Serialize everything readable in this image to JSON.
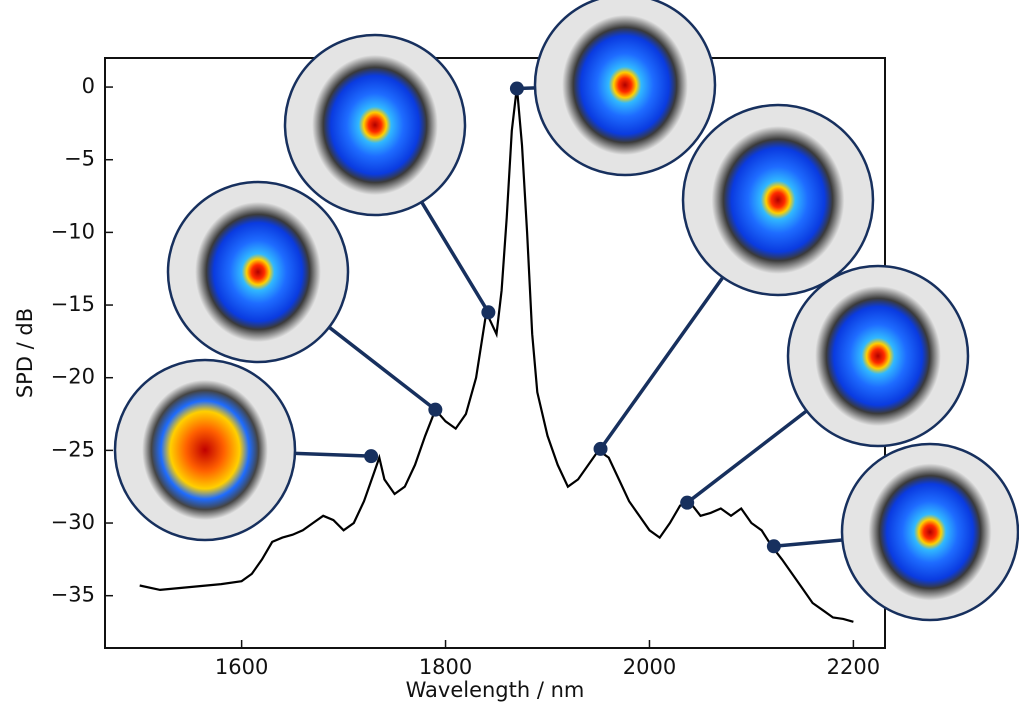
{
  "chart_data": {
    "type": "line",
    "x_label": "Wavelength / nm",
    "y_label": "SPD / dB",
    "x": [
      1500,
      1520,
      1550,
      1580,
      1600,
      1610,
      1620,
      1630,
      1640,
      1650,
      1660,
      1670,
      1680,
      1690,
      1700,
      1710,
      1720,
      1730,
      1735,
      1740,
      1750,
      1760,
      1770,
      1780,
      1790,
      1800,
      1810,
      1820,
      1830,
      1840,
      1850,
      1855,
      1860,
      1865,
      1870,
      1875,
      1880,
      1885,
      1890,
      1900,
      1910,
      1920,
      1930,
      1940,
      1950,
      1960,
      1970,
      1980,
      1990,
      2000,
      2010,
      2020,
      2030,
      2040,
      2050,
      2060,
      2070,
      2080,
      2090,
      2100,
      2110,
      2120,
      2130,
      2140,
      2150,
      2160,
      2170,
      2180,
      2190,
      2200
    ],
    "values": [
      -34.3,
      -34.6,
      -34.4,
      -34.2,
      -34.0,
      -33.5,
      -32.5,
      -31.3,
      -31.0,
      -30.8,
      -30.5,
      -30.0,
      -29.5,
      -29.8,
      -30.5,
      -30.0,
      -28.5,
      -26.5,
      -25.5,
      -27.0,
      -28.0,
      -27.5,
      -26.0,
      -24.0,
      -22.2,
      -23.0,
      -23.5,
      -22.5,
      -20.0,
      -15.5,
      -17.0,
      -14.0,
      -9.0,
      -3.0,
      0.0,
      -4.0,
      -10.0,
      -17.0,
      -21.0,
      -24.0,
      -26.0,
      -27.5,
      -27.0,
      -26.0,
      -25.0,
      -25.5,
      -27.0,
      -28.5,
      -29.5,
      -30.5,
      -31.0,
      -30.0,
      -28.8,
      -28.6,
      -29.5,
      -29.3,
      -29.0,
      -29.5,
      -29.0,
      -30.0,
      -30.5,
      -31.6,
      -32.5,
      -33.5,
      -34.5,
      -35.5,
      -36.0,
      -36.5,
      -36.6,
      -36.8
    ],
    "color": "#000000",
    "highlights": {
      "x": [
        1727,
        1790,
        1842,
        1870,
        1952,
        2037,
        2122
      ],
      "values": [
        -25.4,
        -22.2,
        -15.5,
        -0.1,
        -24.9,
        -28.6,
        -31.6
      ],
      "color": "#17305e"
    },
    "xlim": [
      1466,
      2231
    ],
    "ylim": [
      -38.6,
      2
    ],
    "xticks": [
      1600,
      1800,
      2000,
      2200
    ],
    "yticks": [
      0,
      {
        "value": -5,
        "label": "−5"
      },
      {
        "value": -10,
        "label": "−10"
      },
      {
        "value": -15,
        "label": "−15"
      },
      {
        "value": -20,
        "label": "−20"
      },
      {
        "value": -25,
        "label": "−25"
      },
      {
        "value": -30,
        "label": "−30"
      },
      {
        "value": -35,
        "label": "−35"
      }
    ]
  }
}
